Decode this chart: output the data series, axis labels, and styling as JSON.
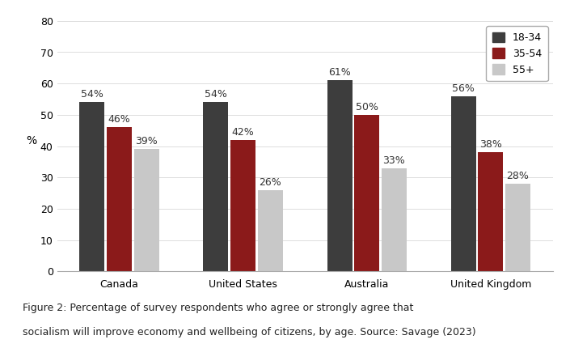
{
  "categories": [
    "Canada",
    "United States",
    "Australia",
    "United Kingdom"
  ],
  "series": {
    "18-34": [
      54,
      54,
      61,
      56
    ],
    "35-54": [
      46,
      42,
      50,
      38
    ],
    "55+": [
      39,
      26,
      33,
      28
    ]
  },
  "colors": {
    "18-34": "#3d3d3d",
    "35-54": "#8b1a1a",
    "55+": "#c8c8c8"
  },
  "ylabel": "%",
  "ylim": [
    0,
    80
  ],
  "yticks": [
    0,
    10,
    20,
    30,
    40,
    50,
    60,
    70,
    80
  ],
  "legend_labels": [
    "18-34",
    "35-54",
    "55+"
  ],
  "caption_line1": "Figure 2: Percentage of survey respondents who agree or strongly agree that",
  "caption_line2": "socialism will improve economy and wellbeing of citizens, by age. Source: Savage (2023)",
  "bar_width": 0.22,
  "background_color": "#ffffff",
  "label_fontsize": 9,
  "tick_fontsize": 9,
  "legend_fontsize": 9,
  "caption_fontsize": 9
}
